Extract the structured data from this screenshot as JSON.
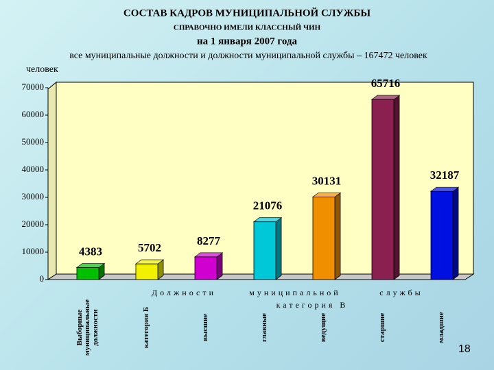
{
  "chart_data": {
    "type": "bar3d",
    "title": "СОСТАВ КАДРОВ МУНИЦИПАЛЬНОЙ СЛУЖБЫ",
    "subtitle": "СПРАВОЧНО ИМЕЛИ КЛАССНЫЙ ЧИН",
    "date_line": "на 1 января 2007 года",
    "note": "все муниципальные должности и должности муниципальной службы – 167472 человек",
    "y_label": "человек",
    "categories": [
      "Выборные муниципальные должности",
      "категория Б",
      "высшие",
      "главные",
      "ведущие",
      "старшие",
      "младшие"
    ],
    "values": [
      4383,
      5702,
      8277,
      21076,
      30131,
      65716,
      32187
    ],
    "colors": [
      "#00c000",
      "#f0f000",
      "#d000d0",
      "#00c8d8",
      "#f09000",
      "#8a2050",
      "#0010e0"
    ],
    "group_labels": [
      "Должности",
      "муниципальной",
      "службы",
      "категория В"
    ],
    "ylim": [
      0,
      70000
    ],
    "yticks": [
      0,
      10000,
      20000,
      30000,
      40000,
      50000,
      60000,
      70000
    ],
    "grid": false,
    "page_number": "18"
  }
}
